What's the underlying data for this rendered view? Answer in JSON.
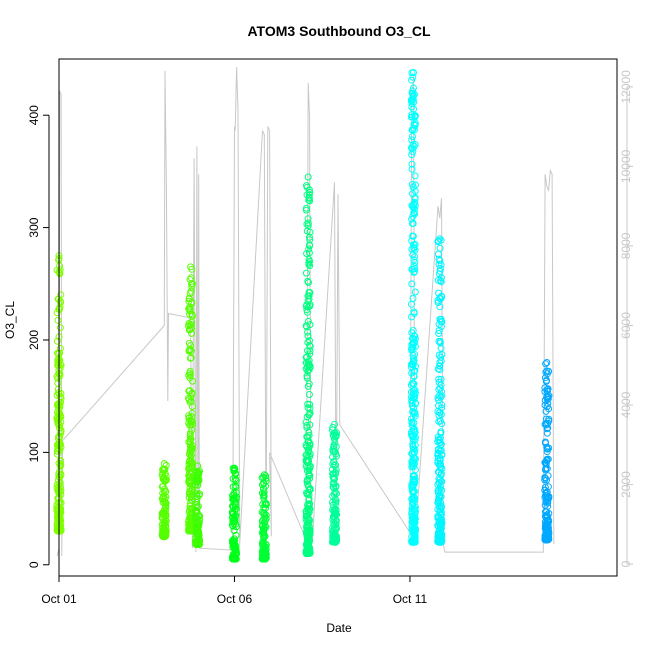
{
  "chart_data": {
    "type": "scatter",
    "title": "ATOM3 Southbound O3_CL",
    "xlabel": "Date",
    "ylabel": "O3_CL",
    "x_axis": {
      "range_days": [
        0.0,
        15.9
      ],
      "ticks": [
        {
          "day": 0,
          "label": "Oct 01"
        },
        {
          "day": 5,
          "label": "Oct 06"
        },
        {
          "day": 10,
          "label": "Oct 11"
        }
      ]
    },
    "y_axis_left": {
      "range": [
        -10,
        450
      ],
      "ticks": [
        0,
        100,
        200,
        300,
        400
      ]
    },
    "y_axis_right": {
      "range": [
        -300,
        12700
      ],
      "ticks": [
        0,
        2000,
        4000,
        6000,
        8000,
        10000,
        12000
      ],
      "color": "#c8c8c8"
    },
    "grid": false,
    "legend": "none",
    "profiles": [
      {
        "day": 0.0,
        "o3_min": 30,
        "o3_max": 275,
        "color": "#80ff00"
      },
      {
        "day": 3.0,
        "o3_min": 25,
        "o3_max": 90,
        "color": "#55ff00"
      },
      {
        "day": 3.75,
        "o3_min": 30,
        "o3_max": 265,
        "color": "#55ff00"
      },
      {
        "day": 3.95,
        "o3_min": 18,
        "o3_max": 88,
        "color": "#3cff00"
      },
      {
        "day": 5.0,
        "o3_min": 5,
        "o3_max": 86,
        "color": "#00ff1a"
      },
      {
        "day": 5.85,
        "o3_min": 5,
        "o3_max": 80,
        "color": "#00ff33"
      },
      {
        "day": 7.1,
        "o3_min": 10,
        "o3_max": 345,
        "color": "#00ff80"
      },
      {
        "day": 7.85,
        "o3_min": 20,
        "o3_max": 125,
        "color": "#00ff99"
      },
      {
        "day": 10.1,
        "o3_min": 20,
        "o3_max": 438,
        "color": "#00ffff"
      },
      {
        "day": 10.85,
        "o3_min": 20,
        "o3_max": 290,
        "color": "#00f5ff"
      },
      {
        "day": 13.9,
        "o3_min": 22,
        "o3_max": 180,
        "color": "#00a8ff"
      }
    ],
    "altitude_track": [
      [
        -0.05,
        200
      ],
      [
        0.0,
        400
      ],
      [
        0.02,
        11900
      ],
      [
        0.06,
        11800
      ],
      [
        0.08,
        200
      ],
      [
        0.1,
        3100
      ],
      [
        3.0,
        6000
      ],
      [
        3.02,
        12400
      ],
      [
        3.06,
        9500
      ],
      [
        3.1,
        4100
      ],
      [
        3.12,
        6300
      ],
      [
        3.7,
        6200
      ],
      [
        3.75,
        6000
      ],
      [
        3.8,
        400
      ],
      [
        3.85,
        10200
      ],
      [
        3.9,
        300
      ],
      [
        3.93,
        10500
      ],
      [
        3.96,
        400
      ],
      [
        3.98,
        9800
      ],
      [
        4.0,
        400
      ],
      [
        4.95,
        350
      ],
      [
        5.0,
        11000
      ],
      [
        5.02,
        10900
      ],
      [
        5.06,
        12500
      ],
      [
        5.1,
        11400
      ],
      [
        5.15,
        500
      ],
      [
        5.8,
        10900
      ],
      [
        5.85,
        10800
      ],
      [
        5.9,
        300
      ],
      [
        5.95,
        11000
      ],
      [
        6.0,
        10900
      ],
      [
        6.05,
        700
      ],
      [
        6.0,
        2800
      ],
      [
        7.05,
        600
      ],
      [
        7.1,
        12100
      ],
      [
        7.14,
        11200
      ],
      [
        7.18,
        500
      ],
      [
        7.22,
        600
      ],
      [
        7.85,
        9600
      ],
      [
        7.9,
        900
      ],
      [
        7.95,
        9300
      ],
      [
        8.0,
        3500
      ],
      [
        10.0,
        800
      ],
      [
        10.05,
        11500
      ],
      [
        10.1,
        12300
      ],
      [
        10.14,
        500
      ],
      [
        10.8,
        9000
      ],
      [
        10.85,
        8700
      ],
      [
        10.9,
        9200
      ],
      [
        10.95,
        500
      ],
      [
        11.0,
        300
      ],
      [
        13.8,
        300
      ],
      [
        13.85,
        9800
      ],
      [
        13.9,
        9500
      ],
      [
        13.95,
        9400
      ],
      [
        14.0,
        9900
      ],
      [
        14.05,
        9800
      ],
      [
        14.1,
        500
      ]
    ]
  }
}
